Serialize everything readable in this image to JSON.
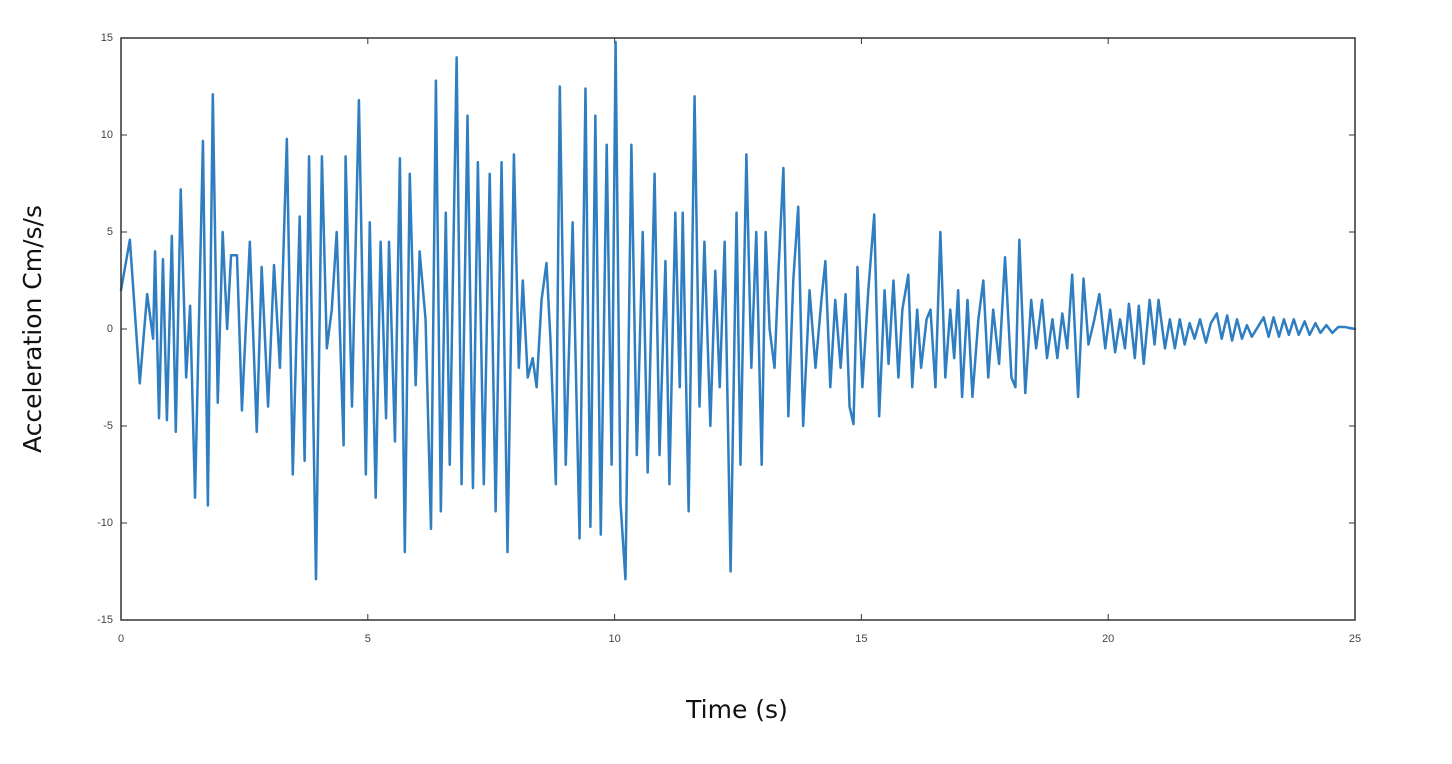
{
  "chart_data": {
    "type": "line",
    "x_label": "Time (s)",
    "y_label": "Acceleration Cm/s/s",
    "color": "#2e7ec1",
    "xlim": [
      0,
      25
    ],
    "xticks": [
      0,
      5,
      10,
      15,
      20,
      25
    ],
    "ylim": [
      -15,
      15
    ],
    "yticks": [
      -15,
      -10,
      -5,
      0,
      5,
      10,
      15
    ],
    "grid": false,
    "x": [
      0,
      0.18,
      0.38,
      0.53,
      0.65,
      0.69,
      0.77,
      0.85,
      0.93,
      1.03,
      1.11,
      1.21,
      1.32,
      1.4,
      1.5,
      1.66,
      1.76,
      1.86,
      1.96,
      2.06,
      2.15,
      2.23,
      2.35,
      2.45,
      2.61,
      2.75,
      2.85,
      2.98,
      3.1,
      3.22,
      3.36,
      3.48,
      3.62,
      3.72,
      3.81,
      3.95,
      4.07,
      4.17,
      4.27,
      4.37,
      4.51,
      4.55,
      4.68,
      4.82,
      4.96,
      5.04,
      5.16,
      5.26,
      5.37,
      5.43,
      5.55,
      5.65,
      5.75,
      5.85,
      5.97,
      6.05,
      6.17,
      6.28,
      6.38,
      6.48,
      6.58,
      6.66,
      6.8,
      6.9,
      7.02,
      7.13,
      7.23,
      7.35,
      7.47,
      7.59,
      7.71,
      7.83,
      7.96,
      8.06,
      8.14,
      8.24,
      8.34,
      8.42,
      8.52,
      8.62,
      8.7,
      8.81,
      8.89,
      9.01,
      9.15,
      9.29,
      9.41,
      9.51,
      9.61,
      9.72,
      9.84,
      9.94,
      10.02,
      10.12,
      10.22,
      10.34,
      10.45,
      10.57,
      10.67,
      10.81,
      10.91,
      11.03,
      11.11,
      11.23,
      11.32,
      11.38,
      11.5,
      11.62,
      11.72,
      11.82,
      11.94,
      12.04,
      12.13,
      12.23,
      12.35,
      12.47,
      12.55,
      12.67,
      12.77,
      12.87,
      12.98,
      13.06,
      13.14,
      13.24,
      13.32,
      13.42,
      13.52,
      13.62,
      13.72,
      13.82,
      13.95,
      14.07,
      14.19,
      14.27,
      14.37,
      14.47,
      14.58,
      14.68,
      14.76,
      14.84,
      14.92,
      15.02,
      15.14,
      15.26,
      15.36,
      15.47,
      15.55,
      15.65,
      15.75,
      15.83,
      15.95,
      16.03,
      16.13,
      16.21,
      16.32,
      16.4,
      16.5,
      16.6,
      16.7,
      16.8,
      16.88,
      16.96,
      17.04,
      17.15,
      17.25,
      17.37,
      17.47,
      17.57,
      17.67,
      17.79,
      17.91,
      18.04,
      18.12,
      18.2,
      18.32,
      18.44,
      18.54,
      18.66,
      18.76,
      18.87,
      18.97,
      19.07,
      19.17,
      19.27,
      19.39,
      19.5,
      19.6,
      19.72,
      19.82,
      19.94,
      20.04,
      20.14,
      20.24,
      20.34,
      20.42,
      20.54,
      20.62,
      20.72,
      20.84,
      20.94,
      21.02,
      21.15,
      21.25,
      21.35,
      21.45,
      21.55,
      21.65,
      21.75,
      21.86,
      21.98,
      22.08,
      22.2,
      22.3,
      22.41,
      22.51,
      22.61,
      22.71,
      22.81,
      22.91,
      23.03,
      23.15,
      23.25,
      23.35,
      23.46,
      23.56,
      23.66,
      23.76,
      23.86,
      23.98,
      24.08,
      24.2,
      24.3,
      24.42,
      24.54,
      24.66,
      24.8,
      25
    ],
    "values": [
      2,
      4.6,
      -2.8,
      1.8,
      -0.5,
      4,
      -4.6,
      3.6,
      -4.7,
      4.8,
      -5.3,
      7.2,
      -2.5,
      1.2,
      -8.7,
      9.7,
      -9.1,
      12.1,
      -3.8,
      5,
      0,
      3.8,
      3.8,
      -4.2,
      4.5,
      -5.3,
      3.2,
      -4,
      3.3,
      -2,
      9.8,
      -7.5,
      5.8,
      -6.8,
      8.9,
      -12.9,
      8.9,
      -1,
      1,
      5,
      -6,
      8.9,
      -4,
      11.8,
      -7.5,
      5.5,
      -8.7,
      4.5,
      -4.6,
      4.5,
      -5.8,
      8.8,
      -11.5,
      8,
      -2.9,
      4,
      0.5,
      -10.3,
      12.8,
      -9.4,
      6,
      -7,
      14,
      -8,
      11,
      -8.2,
      8.6,
      -8,
      8,
      -9.4,
      8.6,
      -11.5,
      9,
      -2,
      2.5,
      -2.5,
      -1.5,
      -3,
      1.5,
      3.4,
      -0.5,
      -8,
      12.5,
      -7,
      5.5,
      -10.8,
      12.4,
      -10.2,
      11,
      -10.6,
      9.5,
      -7,
      14.8,
      -9,
      -12.9,
      9.5,
      -6.5,
      5,
      -7.4,
      8,
      -6.5,
      3.5,
      -8,
      6,
      -3,
      6,
      -9.4,
      12,
      -4,
      4.5,
      -5,
      3,
      -3,
      4.5,
      -12.5,
      6,
      -7,
      9,
      -2,
      5,
      -7,
      5,
      0,
      -2,
      3,
      8.3,
      -4.5,
      2.5,
      6.3,
      -5,
      2,
      -2,
      1.5,
      3.5,
      -3,
      1.5,
      -2,
      1.8,
      -4,
      -4.9,
      3.2,
      -3,
      2,
      5.9,
      -4.5,
      2,
      -1.8,
      2.5,
      -2.5,
      1,
      2.8,
      -3,
      1,
      -2,
      0.5,
      1,
      -3,
      5,
      -2.5,
      1,
      -1.5,
      2,
      -3.5,
      1.5,
      -3.5,
      0.5,
      2.5,
      -2.5,
      1,
      -1.8,
      3.7,
      -2.5,
      -3,
      4.6,
      -3.3,
      1.5,
      -1,
      1.5,
      -1.5,
      0.5,
      -1.5,
      0.8,
      -1,
      2.8,
      -3.5,
      2.6,
      -0.8,
      0.5,
      1.8,
      -1,
      1,
      -1.2,
      0.5,
      -1,
      1.3,
      -1.5,
      1.2,
      -1.8,
      1.5,
      -0.8,
      1.5,
      -1,
      0.5,
      -1,
      0.5,
      -0.8,
      0.3,
      -0.5,
      0.5,
      -0.7,
      0.3,
      0.8,
      -0.5,
      0.7,
      -0.6,
      0.5,
      -0.5,
      0.2,
      -0.4,
      0.1,
      0.6,
      -0.4,
      0.6,
      -0.4,
      0.5,
      -0.3,
      0.5,
      -0.3,
      0.4,
      -0.3,
      0.3,
      -0.2,
      0.2,
      -0.2,
      0.1,
      0.1,
      0
    ]
  }
}
